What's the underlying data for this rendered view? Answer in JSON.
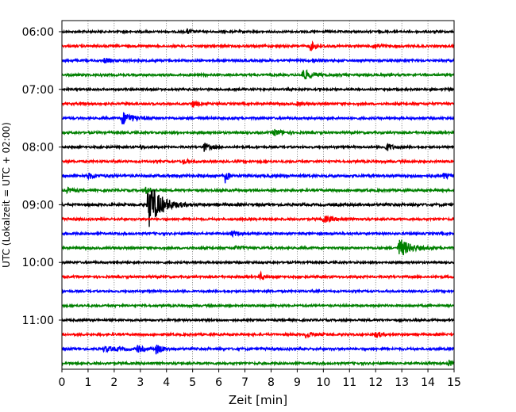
{
  "chart_data": {
    "type": "line",
    "title": "",
    "xlabel": "Zeit  [min]",
    "ylabel": "UTC (Lokalzeit = UTC + 02:00)",
    "xlim": [
      0,
      15
    ],
    "x_ticks": [
      "0",
      "1",
      "2",
      "3",
      "4",
      "5",
      "6",
      "7",
      "8",
      "9",
      "10",
      "11",
      "12",
      "13",
      "14",
      "15"
    ],
    "y_ticks": [
      "06:00",
      "07:00",
      "08:00",
      "09:00",
      "10:00",
      "11:00"
    ],
    "grid": "vertical dotted",
    "line_interval_minutes": 15,
    "color_cycle": [
      "#000000",
      "#ff0000",
      "#0000ff",
      "#008000"
    ],
    "traces": [
      {
        "start": "06:00",
        "color": "#000000",
        "noise": 1.2,
        "events": [
          {
            "t": 4.8,
            "amp": 3,
            "dur": 0.4
          }
        ]
      },
      {
        "start": "06:15",
        "color": "#ff0000",
        "noise": 1.3,
        "events": [
          {
            "t": 9.5,
            "amp": 5,
            "dur": 0.6
          },
          {
            "t": 11.9,
            "amp": 4,
            "dur": 0.5
          }
        ]
      },
      {
        "start": "06:30",
        "color": "#0000ff",
        "noise": 1.3,
        "events": [
          {
            "t": 1.6,
            "amp": 3,
            "dur": 0.5
          },
          {
            "t": 9.6,
            "amp": 2.5,
            "dur": 0.4
          }
        ]
      },
      {
        "start": "06:45",
        "color": "#008000",
        "noise": 1.3,
        "events": [
          {
            "t": 9.2,
            "amp": 7,
            "dur": 0.8
          }
        ]
      },
      {
        "start": "07:00",
        "color": "#000000",
        "noise": 1.2,
        "events": []
      },
      {
        "start": "07:15",
        "color": "#ff0000",
        "noise": 1.3,
        "events": [
          {
            "t": 5.0,
            "amp": 4,
            "dur": 0.4
          },
          {
            "t": 9.0,
            "amp": 2,
            "dur": 0.4
          }
        ]
      },
      {
        "start": "07:30",
        "color": "#0000ff",
        "noise": 1.3,
        "events": [
          {
            "t": 2.3,
            "amp": 8,
            "dur": 0.9
          }
        ]
      },
      {
        "start": "07:45",
        "color": "#008000",
        "noise": 1.3,
        "events": [
          {
            "t": 8.1,
            "amp": 4,
            "dur": 0.7
          }
        ]
      },
      {
        "start": "08:00",
        "color": "#000000",
        "noise": 1.2,
        "events": [
          {
            "t": 5.4,
            "amp": 6,
            "dur": 0.5
          },
          {
            "t": 12.4,
            "amp": 5,
            "dur": 0.5
          },
          {
            "t": 3.0,
            "amp": 2,
            "dur": 0.3
          }
        ]
      },
      {
        "start": "08:15",
        "color": "#ff0000",
        "noise": 1.3,
        "events": [
          {
            "t": 4.6,
            "amp": 2.5,
            "dur": 0.5
          }
        ]
      },
      {
        "start": "08:30",
        "color": "#0000ff",
        "noise": 1.6,
        "events": [
          {
            "t": 6.25,
            "amp": 9,
            "dur": 0.2
          },
          {
            "t": 1.0,
            "amp": 3,
            "dur": 0.7
          },
          {
            "t": 14.6,
            "amp": 3,
            "dur": 0.4
          }
        ]
      },
      {
        "start": "08:45",
        "color": "#008000",
        "noise": 1.4,
        "events": [
          {
            "t": 0.2,
            "amp": 3,
            "dur": 0.4
          },
          {
            "t": 3.2,
            "amp": 4,
            "dur": 0.4
          }
        ]
      },
      {
        "start": "09:00",
        "color": "#000000",
        "noise": 1.5,
        "events": [
          {
            "t": 3.3,
            "amp": 30,
            "dur": 1.0
          }
        ]
      },
      {
        "start": "09:15",
        "color": "#ff0000",
        "noise": 1.3,
        "events": [
          {
            "t": 10.0,
            "amp": 4,
            "dur": 0.8
          }
        ]
      },
      {
        "start": "09:30",
        "color": "#0000ff",
        "noise": 1.3,
        "events": [
          {
            "t": 6.5,
            "amp": 3,
            "dur": 0.5
          }
        ]
      },
      {
        "start": "09:45",
        "color": "#008000",
        "noise": 1.3,
        "events": [
          {
            "t": 12.9,
            "amp": 12,
            "dur": 0.9
          },
          {
            "t": 6.6,
            "amp": 3,
            "dur": 0.5
          }
        ]
      },
      {
        "start": "10:00",
        "color": "#000000",
        "noise": 1.2,
        "events": []
      },
      {
        "start": "10:15",
        "color": "#ff0000",
        "noise": 1.3,
        "events": [
          {
            "t": 7.6,
            "amp": 5,
            "dur": 0.3
          }
        ]
      },
      {
        "start": "10:30",
        "color": "#0000ff",
        "noise": 1.2,
        "events": []
      },
      {
        "start": "10:45",
        "color": "#008000",
        "noise": 1.2,
        "events": []
      },
      {
        "start": "11:00",
        "color": "#000000",
        "noise": 1.2,
        "events": []
      },
      {
        "start": "11:15",
        "color": "#ff0000",
        "noise": 1.3,
        "events": [
          {
            "t": 9.3,
            "amp": 4,
            "dur": 0.6
          },
          {
            "t": 12.0,
            "amp": 4,
            "dur": 0.5
          }
        ]
      },
      {
        "start": "11:30",
        "color": "#0000ff",
        "noise": 1.4,
        "events": [
          {
            "t": 1.6,
            "amp": 3,
            "dur": 1.2
          },
          {
            "t": 2.9,
            "amp": 4,
            "dur": 0.4
          },
          {
            "t": 3.6,
            "amp": 6,
            "dur": 0.5
          }
        ]
      },
      {
        "start": "11:45",
        "color": "#008000",
        "noise": 1.3,
        "events": [
          {
            "t": 14.8,
            "amp": 4,
            "dur": 0.3
          }
        ]
      }
    ]
  }
}
